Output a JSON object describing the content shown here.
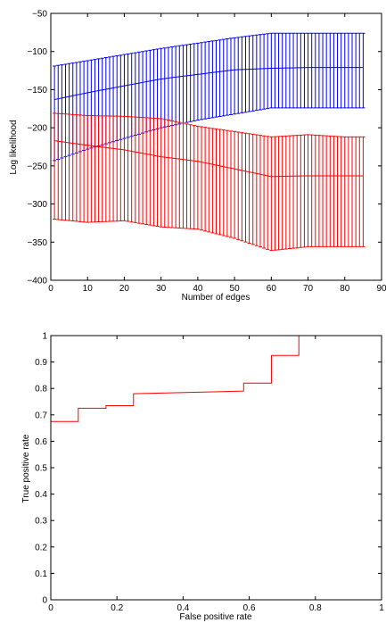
{
  "chart_data": [
    {
      "type": "line",
      "xlabel": "Number of edges",
      "ylabel": "Log likelihood",
      "xlim": [
        0,
        90
      ],
      "ylim": [
        -400,
        -50
      ],
      "xticks": [
        0,
        10,
        20,
        30,
        40,
        50,
        60,
        70,
        80,
        90
      ],
      "yticks": [
        -50,
        -100,
        -150,
        -200,
        -250,
        -300,
        -350,
        -400
      ],
      "error_bars": true,
      "grid": false,
      "series": [
        {
          "color": "#0000ff",
          "x": [
            1,
            10,
            20,
            30,
            40,
            50,
            60,
            70,
            80,
            85
          ],
          "values": [
            -163,
            -154,
            -145,
            -136,
            -130,
            -124,
            -122,
            -121,
            -121,
            -121
          ],
          "upper": [
            -119,
            -112,
            -104,
            -96,
            -89,
            -82,
            -76,
            -76,
            -76,
            -76
          ],
          "lower": [
            -243,
            -228,
            -214,
            -200,
            -190,
            -182,
            -174,
            -174,
            -174,
            -174
          ]
        },
        {
          "color": "#ff0000",
          "x": [
            1,
            10,
            20,
            30,
            40,
            50,
            60,
            70,
            80,
            85
          ],
          "values": [
            -217,
            -223,
            -229,
            -238,
            -244,
            -254,
            -264,
            -263,
            -263,
            -263
          ],
          "upper": [
            -181,
            -184,
            -185,
            -188,
            -198,
            -205,
            -212,
            -209,
            -212,
            -212
          ],
          "lower": [
            -320,
            -324,
            -322,
            -330,
            -333,
            -345,
            -361,
            -356,
            -356,
            -356
          ]
        }
      ]
    },
    {
      "type": "line",
      "xlabel": "False positive rate",
      "ylabel": "True positive rate",
      "xlim": [
        0,
        1
      ],
      "ylim": [
        0,
        1
      ],
      "xticks": [
        0,
        0.2,
        0.4,
        0.6,
        0.8,
        1
      ],
      "yticks": [
        0,
        0.1,
        0.2,
        0.3,
        0.4,
        0.5,
        0.6,
        0.7,
        0.8,
        0.9,
        1
      ],
      "grid": false,
      "series": [
        {
          "color": "#0000ff",
          "x": [
            0,
            0,
            1
          ],
          "values": [
            0,
            1,
            1
          ]
        },
        {
          "color": "#ff0000",
          "x": [
            0,
            0,
            0.083,
            0.083,
            0.167,
            0.167,
            0.25,
            0.25,
            0.583,
            0.583,
            0.667,
            0.667,
            0.75,
            0.75,
            1.0
          ],
          "values": [
            0,
            0.675,
            0.675,
            0.725,
            0.725,
            0.735,
            0.735,
            0.78,
            0.79,
            0.82,
            0.82,
            0.925,
            0.925,
            1.0,
            1.0
          ]
        }
      ]
    }
  ]
}
